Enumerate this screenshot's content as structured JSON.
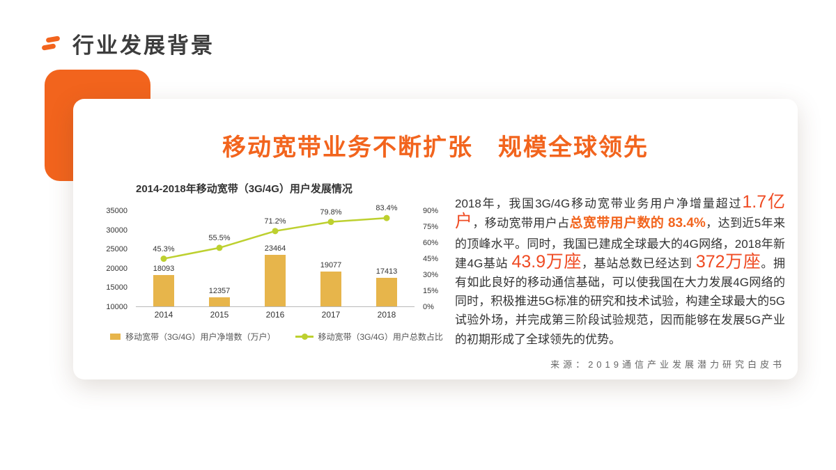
{
  "colors": {
    "accent": "#f2641d",
    "highlight": "#ef4b23",
    "bar": "#e7b54b",
    "line": "#bdd02f",
    "heading_text": "#3d3d3d",
    "body_text": "#333333"
  },
  "page": {
    "header": {
      "title": "行业发展背景"
    }
  },
  "card": {
    "title": "移动宽带业务不断扩张　规模全球领先"
  },
  "chart_data": {
    "type": "bar+line",
    "title": "2014-2018年移动宽带（3G/4G）用户发展情况",
    "categories": [
      "2014",
      "2015",
      "2016",
      "2017",
      "2018"
    ],
    "series": [
      {
        "name": "移动宽带（3G/4G）用户净增数（万户）",
        "type": "bar",
        "axis": "left",
        "values": [
          18093,
          12357,
          23464,
          19077,
          17413
        ],
        "color": "#e7b54b"
      },
      {
        "name": "移动宽带（3G/4G）用户总数占比",
        "type": "line",
        "axis": "right",
        "unit": "%",
        "values": [
          45.3,
          55.5,
          71.2,
          79.8,
          83.4
        ],
        "color": "#bdd02f"
      }
    ],
    "left_axis": {
      "min": 10000,
      "max": 35000,
      "step": 5000,
      "ticks": [
        "35000",
        "30000",
        "25000",
        "20000",
        "15000",
        "10000"
      ]
    },
    "right_axis": {
      "min": 0,
      "max": 90,
      "step": 15,
      "ticks": [
        "90%",
        "75%",
        "60%",
        "45%",
        "30%",
        "15%",
        "0%"
      ]
    },
    "legend_position": "bottom",
    "grid": false
  },
  "body": {
    "segments": [
      {
        "style": "normal",
        "text": "2018年，我国3G/4G移动宽带业务用户净增量超过"
      },
      {
        "style": "big",
        "text": "1.7亿户"
      },
      {
        "style": "normal",
        "text": "，移动宽带用户占"
      },
      {
        "style": "orange",
        "text": "总宽带用户数的 83.4%"
      },
      {
        "style": "normal",
        "text": "，达到近5年来的顶峰水平。同时，我国已建成全球最大的4G网络，2018年新建4G基站 "
      },
      {
        "style": "big",
        "text": "43.9万座"
      },
      {
        "style": "normal",
        "text": "，基站总数已经达到 "
      },
      {
        "style": "big",
        "text": "372万座"
      },
      {
        "style": "normal",
        "text": "。拥有如此良好的移动通信基础，可以使我国在大力发展4G网络的同时，积极推进5G标准的研究和技术试验，构建全球最大的5G试验外场，并完成第三阶段试验规范，因而能够在发展5G产业的初期形成了全球领先的优势。"
      }
    ],
    "source": "来源：2019通信产业发展潜力研究白皮书"
  }
}
